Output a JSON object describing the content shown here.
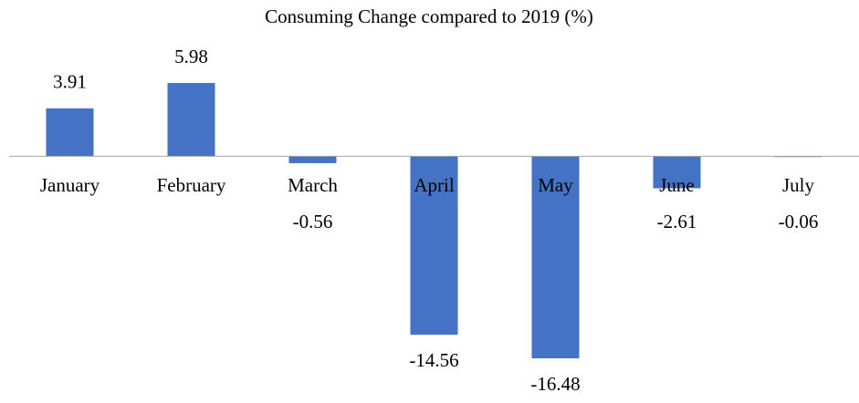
{
  "chart_data": {
    "type": "bar",
    "title": "Consuming Change compared to 2019 (%)",
    "categories": [
      "January",
      "February",
      "March",
      "April",
      "May",
      "June",
      "July"
    ],
    "values": [
      3.91,
      5.98,
      -0.56,
      -14.56,
      -16.48,
      -2.61,
      -0.06
    ],
    "color": "#4472c4"
  }
}
